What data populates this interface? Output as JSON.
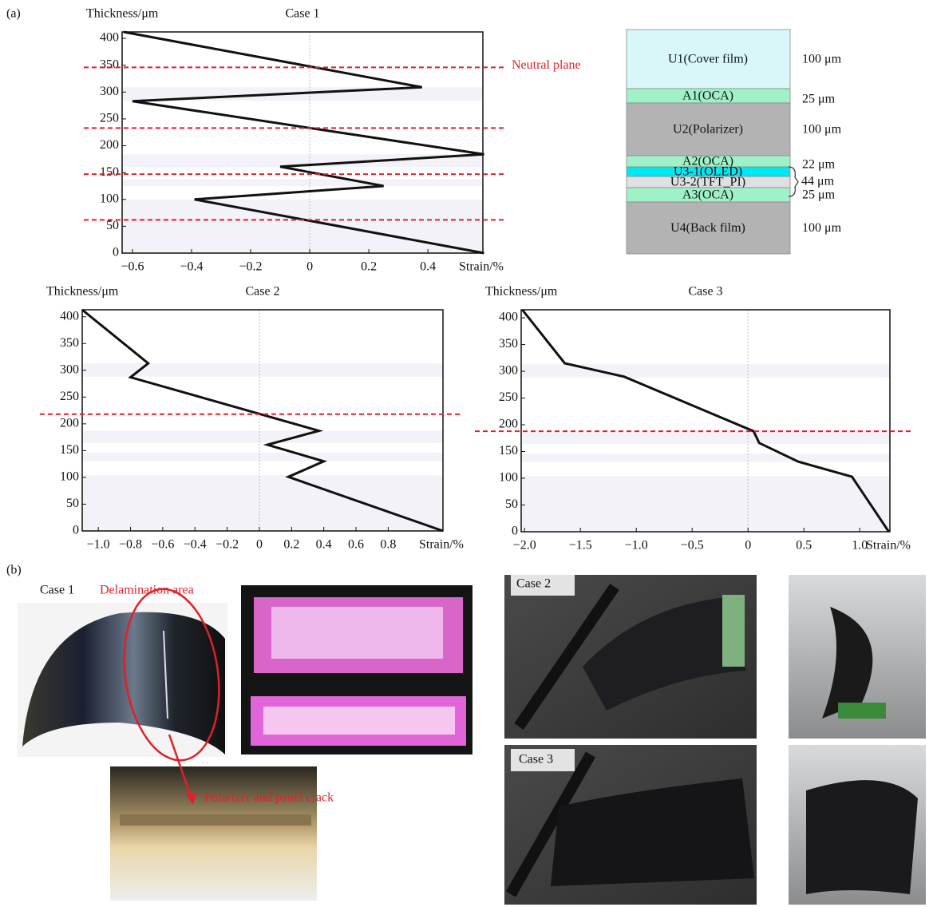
{
  "panel_labels": [
    "(a)",
    "(b)"
  ],
  "chart_data": [
    {
      "type": "line",
      "title": "Case 1",
      "y_label": "Thickness/μm",
      "x_label": "Strain/%",
      "annotation": "Neutral plane",
      "x": [
        -0.63,
        0.38,
        -0.6,
        0.59,
        -0.1,
        0.25,
        -0.39,
        0.59
      ],
      "series": [
        {
          "color": "#111111",
          "values": [
            412,
            309,
            283,
            184,
            161,
            125,
            100,
            0
          ]
        }
      ],
      "xlim": [
        -0.635,
        0.586
      ],
      "ylim": [
        0,
        412
      ],
      "xticks": [
        {
          "value": -0.6,
          "label": "−0.6"
        },
        {
          "value": -0.4,
          "label": "−0.4"
        },
        {
          "value": -0.2,
          "label": "−0.2"
        },
        0,
        0.2,
        0.4
      ],
      "yticks": [
        0,
        50,
        100,
        150,
        200,
        250,
        300,
        350,
        400
      ],
      "neutral_planes": [
        346,
        233,
        147,
        62
      ],
      "layer_bands": [
        [
          284,
          309
        ],
        [
          160,
          184
        ],
        [
          125,
          138
        ],
        [
          0,
          100
        ]
      ]
    },
    {
      "type": "line",
      "title": "Case 2",
      "y_label": "Thickness/μm",
      "x_label": "Strain/%",
      "x": [
        -1.1,
        -0.69,
        -0.8,
        0.37,
        0.05,
        0.4,
        0.18,
        1.14
      ],
      "series": [
        {
          "color": "#111111",
          "values": [
            413,
            313,
            287,
            187,
            161,
            130,
            101,
            0
          ]
        }
      ],
      "xlim": [
        -1.1,
        1.14
      ],
      "ylim": [
        0,
        413
      ],
      "xticks": [
        {
          "value": -1.0,
          "label": "−1.0"
        },
        {
          "value": -0.8,
          "label": "−0.8"
        },
        {
          "value": -0.6,
          "label": "−0.6"
        },
        {
          "value": -0.4,
          "label": "−0.4"
        },
        {
          "value": -0.2,
          "label": "−0.2"
        },
        0,
        0.2,
        0.4,
        0.6,
        0.8
      ],
      "yticks": [
        0,
        50,
        100,
        150,
        200,
        250,
        300,
        350,
        400
      ],
      "neutral_planes": [
        218
      ],
      "layer_bands": [
        [
          288,
          313
        ],
        [
          164,
          187
        ],
        [
          130,
          146
        ],
        [
          0,
          104
        ]
      ]
    },
    {
      "type": "line",
      "title": "Case 3",
      "y_label": "Thickness/μm",
      "x_label": "Strain/%",
      "x": [
        -2.02,
        -1.64,
        -1.11,
        0.05,
        0.1,
        0.45,
        0.93,
        1.26
      ],
      "series": [
        {
          "color": "#111111",
          "values": [
            415,
            315,
            290,
            188,
            166,
            131,
            103,
            0
          ]
        }
      ],
      "xlim": [
        -2.03,
        1.27
      ],
      "ylim": [
        0,
        415
      ],
      "xticks": [
        {
          "value": -2.0,
          "label": "−2.0"
        },
        {
          "value": -1.5,
          "label": "−1.5"
        },
        {
          "value": -1.0,
          "label": "−1.0"
        },
        {
          "value": -0.5,
          "label": "−0.5"
        },
        0,
        0.5,
        {
          "value": 1.0,
          "label": "1.0"
        }
      ],
      "yticks": [
        0,
        50,
        100,
        150,
        200,
        250,
        300,
        350,
        400
      ],
      "neutral_planes": [
        188
      ],
      "layer_bands": [
        [
          288,
          313
        ],
        [
          164,
          187
        ],
        [
          130,
          146
        ],
        [
          0,
          104
        ]
      ]
    }
  ],
  "stack": {
    "layers": [
      {
        "label": "U1(Cover film)",
        "thickness": "100 μm"
      },
      {
        "label": "A1(OCA)",
        "thickness": "25 μm"
      },
      {
        "label": "U2(Polarizer)",
        "thickness": "100 μm"
      },
      {
        "label": "A2(OCA)",
        "thickness": "22 μm"
      },
      {
        "label": "U3-1(OLED)"
      },
      {
        "label": "U3-2(TFT_PI)"
      },
      {
        "label": "A3(OCA)",
        "thickness": "25 μm"
      },
      {
        "label": "U4(Back film)",
        "thickness": "100 μm"
      }
    ],
    "group_thickness": "44 μm"
  },
  "photos": {
    "case1_label": "Case 1",
    "delamination": "Delamination area",
    "crack": "Polarizer and panel crack",
    "case2_label": "Case 2",
    "case3_label": "Case 3"
  }
}
